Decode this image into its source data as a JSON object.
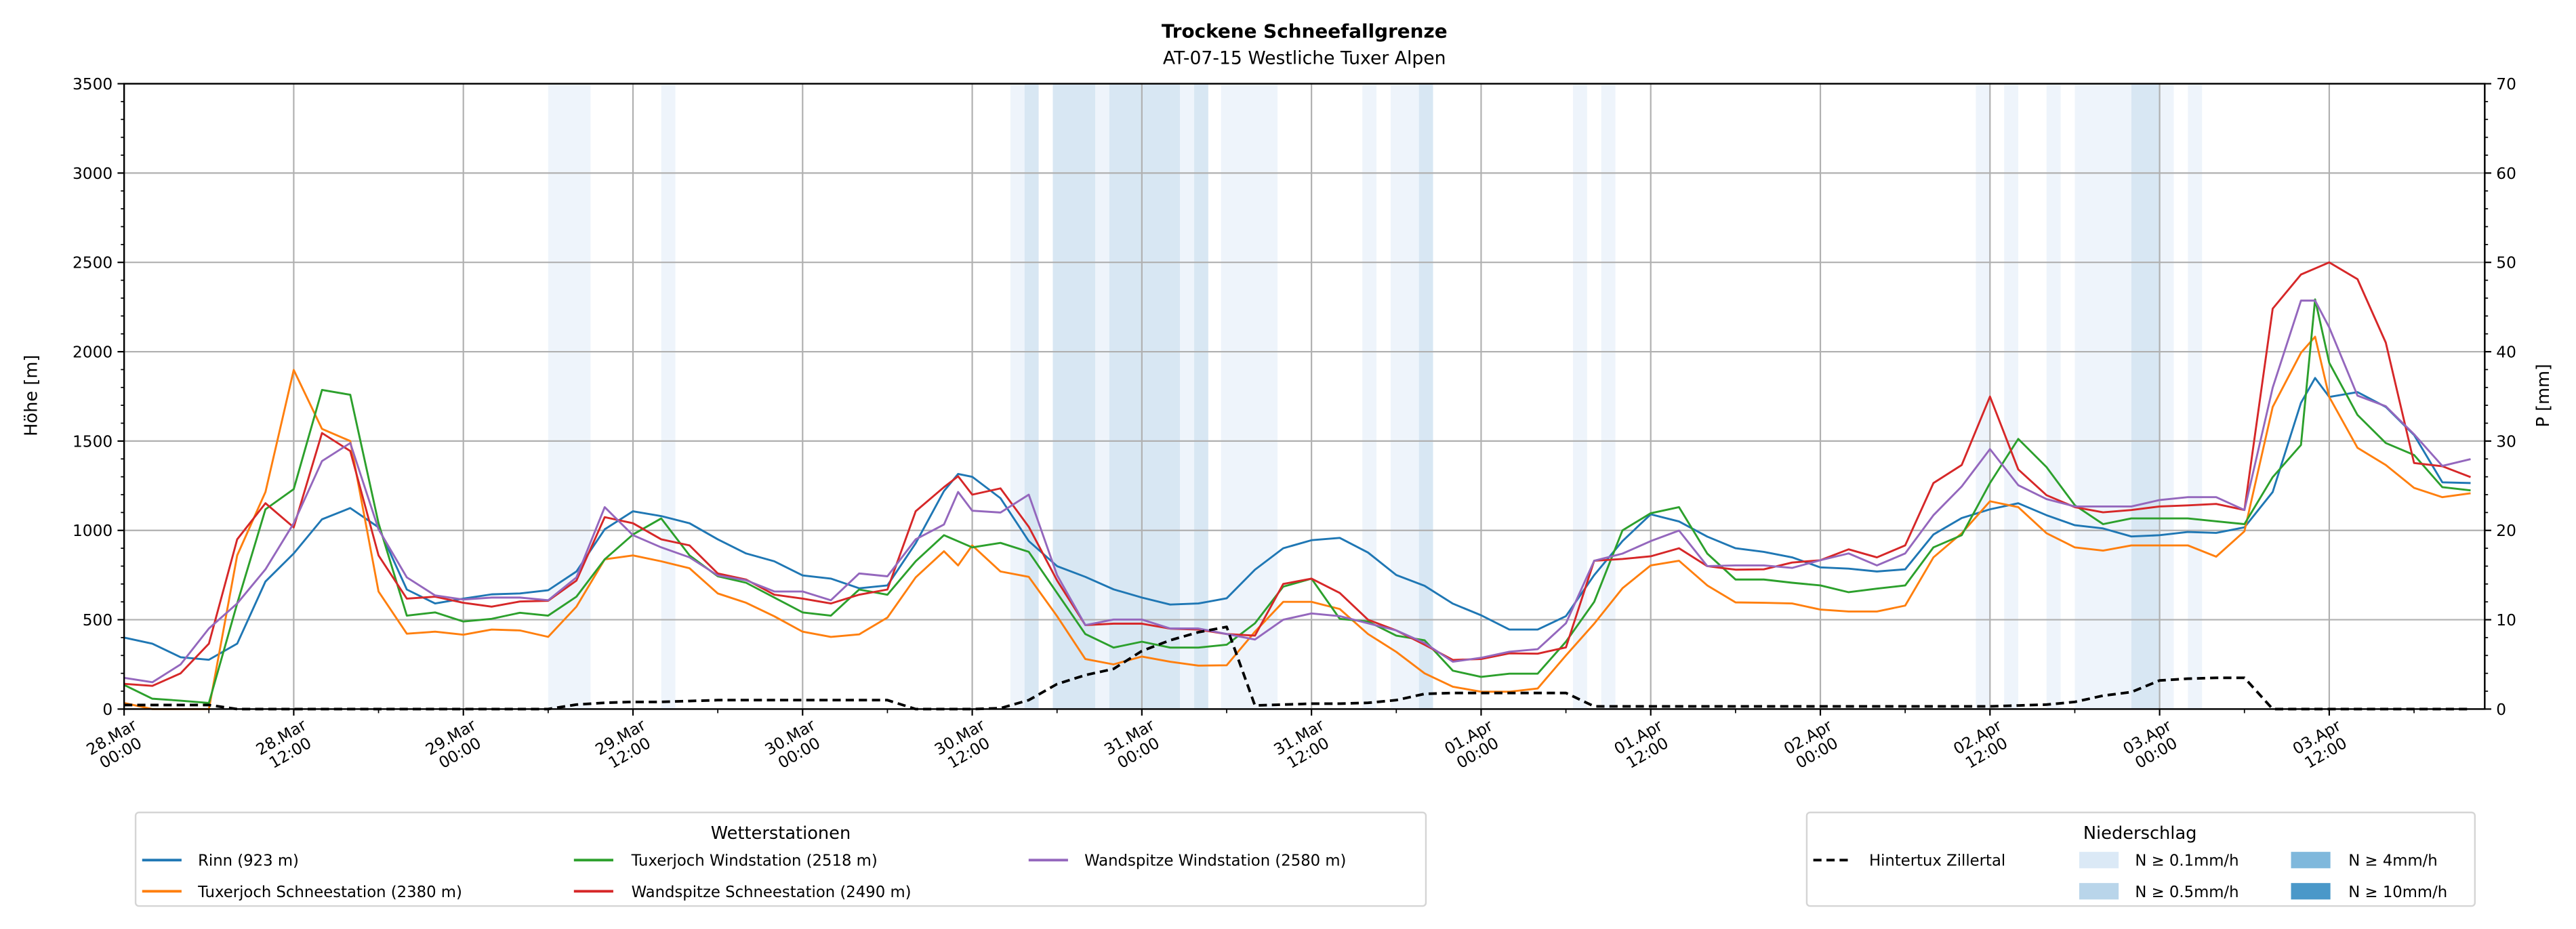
{
  "chart_data": {
    "type": "line",
    "title": "Trockene Schneefallgrenze",
    "subtitle": "AT-07-15 Westliche Tuxer Alpen",
    "ylabel": "Höhe [m]",
    "y2label": "P [mm]",
    "ylim": [
      0,
      3500
    ],
    "y2lim": [
      0,
      70
    ],
    "xlim_hours": [
      0,
      167
    ],
    "x_unit": "hours since 28.Mar 00:00",
    "grid": true,
    "yticks": [
      "0",
      "500",
      "1000",
      "1500",
      "2000",
      "2500",
      "3000",
      "3500"
    ],
    "y2ticks": [
      "0",
      "10",
      "20",
      "30",
      "40",
      "50",
      "60",
      "70"
    ],
    "xticks": [
      [
        "28.Mar",
        "00:00"
      ],
      [
        "28.Mar",
        "12:00"
      ],
      [
        "29.Mar",
        "00:00"
      ],
      [
        "29.Mar",
        "12:00"
      ],
      [
        "30.Mar",
        "00:00"
      ],
      [
        "30.Mar",
        "12:00"
      ],
      [
        "31.Mar",
        "00:00"
      ],
      [
        "31.Mar",
        "12:00"
      ],
      [
        "01.Apr",
        "00:00"
      ],
      [
        "01.Apr",
        "12:00"
      ],
      [
        "02.Apr",
        "00:00"
      ],
      [
        "02.Apr",
        "12:00"
      ],
      [
        "03.Apr",
        "00:00"
      ],
      [
        "03.Apr",
        "12:00"
      ]
    ],
    "x": [
      0,
      2,
      4,
      6,
      8,
      10,
      12,
      14,
      16,
      18,
      20,
      22,
      24,
      26,
      28,
      30,
      32,
      34,
      36,
      38,
      40,
      42,
      44,
      46,
      48,
      50,
      52,
      54,
      56,
      58,
      59,
      60,
      62,
      64,
      66,
      68,
      70,
      72,
      74,
      76,
      78,
      80,
      82,
      84,
      86,
      88,
      90,
      92,
      94,
      96,
      98,
      100,
      102,
      104,
      106,
      108,
      110,
      112,
      114,
      116,
      118,
      120,
      122,
      124,
      126,
      128,
      130,
      132,
      134,
      136,
      138,
      140,
      142,
      144,
      146,
      148,
      150,
      152,
      154,
      155,
      156,
      158,
      160,
      162,
      164,
      166
    ],
    "series": [
      {
        "name": "Rinn (923 m)",
        "color": "#1f77b4",
        "axis": "left",
        "values": [
          400,
          366,
          290,
          276,
          366,
          714,
          871,
          1062,
          1125,
          1017,
          669,
          591,
          618,
          642,
          647,
          665,
          770,
          1006,
          1107,
          1080,
          1040,
          950,
          871,
          827,
          748,
          730,
          676,
          692,
          928,
          1220,
          1316,
          1300,
          1180,
          940,
          800,
          740,
          670,
          624,
          585,
          591,
          620,
          780,
          900,
          945,
          958,
          876,
          750,
          690,
          590,
          525,
          445,
          445,
          520,
          750,
          940,
          1090,
          1050,
          965,
          900,
          880,
          849,
          793,
          786,
          770,
          782,
          977,
          1069,
          1118,
          1152,
          1085,
          1029,
          1011,
          966,
          973,
          991,
          986,
          1017,
          1215,
          1714,
          1853,
          1747,
          1774,
          1691,
          1534,
          1269,
          1265
        ]
      },
      {
        "name": "Tuxerjoch Schneestation (2380 m)",
        "color": "#ff7f0e",
        "axis": "left",
        "values": [
          34,
          0,
          0,
          0,
          860,
          1215,
          1898,
          1568,
          1500,
          658,
          422,
          433,
          416,
          445,
          440,
          404,
          573,
          838,
          860,
          827,
          788,
          647,
          595,
          519,
          433,
          404,
          418,
          512,
          737,
          883,
          804,
          916,
          770,
          740,
          520,
          280,
          250,
          294,
          265,
          243,
          245,
          433,
          600,
          600,
          560,
          420,
          320,
          200,
          125,
          97,
          97,
          115,
          300,
          478,
          676,
          804,
          830,
          692,
          597,
          595,
          591,
          557,
          546,
          546,
          579,
          849,
          984,
          1163,
          1130,
          984,
          905,
          887,
          916,
          916,
          916,
          853,
          995,
          1691,
          1994,
          2084,
          1747,
          1462,
          1366,
          1238,
          1186,
          1208
        ]
      },
      {
        "name": "Tuxerjoch Windstation (2518 m)",
        "color": "#2ca02c",
        "axis": "left",
        "values": [
          135,
          58,
          47,
          34,
          591,
          1118,
          1231,
          1786,
          1759,
          1040,
          523,
          541,
          490,
          505,
          539,
          523,
          629,
          838,
          977,
          1067,
          860,
          743,
          707,
          624,
          541,
          523,
          669,
          640,
          827,
          973,
          939,
          905,
          930,
          880,
          650,
          420,
          344,
          377,
          344,
          344,
          360,
          480,
          685,
          730,
          505,
          490,
          411,
          385,
          215,
          180,
          198,
          198,
          377,
          600,
          1000,
          1096,
          1130,
          870,
          725,
          725,
          707,
          692,
          654,
          674,
          692,
          905,
          973,
          1265,
          1512,
          1354,
          1141,
          1035,
          1067,
          1067,
          1067,
          1051,
          1035,
          1298,
          1478,
          2293,
          1938,
          1646,
          1489,
          1422,
          1242,
          1224
        ]
      },
      {
        "name": "Wandspitze Schneestation (2490 m)",
        "color": "#d62728",
        "axis": "left",
        "values": [
          141,
          130,
          200,
          366,
          950,
          1152,
          1017,
          1545,
          1444,
          860,
          618,
          629,
          595,
          573,
          602,
          606,
          719,
          1074,
          1040,
          950,
          916,
          759,
          725,
          640,
          618,
          591,
          640,
          669,
          1107,
          1242,
          1303,
          1200,
          1235,
          1020,
          720,
          470,
          478,
          478,
          450,
          445,
          420,
          411,
          700,
          730,
          650,
          500,
          440,
          360,
          275,
          280,
          312,
          310,
          345,
          830,
          840,
          855,
          900,
          800,
          780,
          782,
          820,
          833,
          894,
          849,
          916,
          1265,
          1366,
          1749,
          1341,
          1197,
          1130,
          1101,
          1114,
          1134,
          1140,
          1148,
          1114,
          2241,
          2432,
          2466,
          2500,
          2406,
          2051,
          1377,
          1359,
          1298
        ]
      },
      {
        "name": "Wandspitze Windstation (2580 m)",
        "color": "#9467bd",
        "axis": "left",
        "values": [
          175,
          150,
          250,
          451,
          591,
          782,
          1040,
          1388,
          1489,
          1006,
          737,
          636,
          613,
          624,
          624,
          609,
          737,
          1130,
          973,
          905,
          849,
          748,
          721,
          658,
          658,
          609,
          759,
          743,
          950,
          1033,
          1215,
          1110,
          1100,
          1200,
          750,
          470,
          501,
          501,
          451,
          451,
          420,
          389,
          500,
          535,
          520,
          480,
          440,
          370,
          265,
          287,
          321,
          335,
          480,
          830,
          870,
          940,
          999,
          800,
          804,
          804,
          790,
          833,
          871,
          804,
          871,
          1085,
          1246,
          1455,
          1253,
          1175,
          1134,
          1134,
          1134,
          1170,
          1186,
          1186,
          1114,
          1799,
          2286,
          2286,
          2136,
          1754,
          1695,
          1538,
          1361,
          1399
        ]
      },
      {
        "name": "Hintertux Zillertal",
        "color": "#000000",
        "axis": "right",
        "dashed": true,
        "values": [
          0.45,
          0.45,
          0.45,
          0.45,
          0,
          0,
          0,
          0,
          0,
          0,
          0,
          0,
          0,
          0,
          0,
          0,
          0.5,
          0.7,
          0.8,
          0.8,
          0.9,
          1.0,
          1.0,
          1.0,
          1.0,
          1.0,
          1.0,
          1.0,
          0,
          0,
          0,
          0,
          0.1,
          1.0,
          2.8,
          3.8,
          4.5,
          6.5,
          7.7,
          8.6,
          9.2,
          0.4,
          0.5,
          0.6,
          0.6,
          0.7,
          1.0,
          1.7,
          1.8,
          1.8,
          1.8,
          1.8,
          1.8,
          0.3,
          0.3,
          0.3,
          0.3,
          0.3,
          0.3,
          0.3,
          0.3,
          0.3,
          0.3,
          0.3,
          0.3,
          0.3,
          0.3,
          0.3,
          0.4,
          0.5,
          0.8,
          1.5,
          1.9,
          3.2,
          3.4,
          3.5,
          3.5,
          0,
          0,
          0,
          0,
          0,
          0,
          0,
          0,
          0
        ]
      }
    ],
    "precip_bands": [
      {
        "from": 30,
        "to": 33,
        "level": "N ≥ 0.1mm/h"
      },
      {
        "from": 38,
        "to": 39,
        "level": "N ≥ 0.1mm/h"
      },
      {
        "from": 62.7,
        "to": 63.7,
        "level": "N ≥ 0.1mm/h"
      },
      {
        "from": 63.7,
        "to": 64.7,
        "level": "N ≥ 0.5mm/h"
      },
      {
        "from": 65.7,
        "to": 68.7,
        "level": "N ≥ 0.5mm/h"
      },
      {
        "from": 68.7,
        "to": 69.7,
        "level": "N ≥ 0.1mm/h"
      },
      {
        "from": 69.7,
        "to": 74.7,
        "level": "N ≥ 0.5mm/h"
      },
      {
        "from": 74.7,
        "to": 75.7,
        "level": "N ≥ 0.1mm/h"
      },
      {
        "from": 75.7,
        "to": 76.7,
        "level": "N ≥ 0.5mm/h"
      },
      {
        "from": 77.6,
        "to": 81.6,
        "level": "N ≥ 0.1mm/h"
      },
      {
        "from": 87.6,
        "to": 88.6,
        "level": "N ≥ 0.1mm/h"
      },
      {
        "from": 89.6,
        "to": 91.6,
        "level": "N ≥ 0.1mm/h"
      },
      {
        "from": 91.6,
        "to": 92.6,
        "level": "N ≥ 0.5mm/h"
      },
      {
        "from": 102.5,
        "to": 103.5,
        "level": "N ≥ 0.1mm/h"
      },
      {
        "from": 104.5,
        "to": 105.5,
        "level": "N ≥ 0.1mm/h"
      },
      {
        "from": 131,
        "to": 132,
        "level": "N ≥ 0.1mm/h"
      },
      {
        "from": 133,
        "to": 134,
        "level": "N ≥ 0.1mm/h"
      },
      {
        "from": 136,
        "to": 137,
        "level": "N ≥ 0.1mm/h"
      },
      {
        "from": 138,
        "to": 142,
        "level": "N ≥ 0.1mm/h"
      },
      {
        "from": 142,
        "to": 144,
        "level": "N ≥ 0.5mm/h"
      },
      {
        "from": 144,
        "to": 145,
        "level": "N ≥ 0.1mm/h"
      },
      {
        "from": 146,
        "to": 147,
        "level": "N ≥ 0.1mm/h"
      }
    ],
    "band_colors": {
      "N ≥ 0.1mm/h": "#eef4fb",
      "N ≥ 0.5mm/h": "#d8e7f3"
    },
    "legend_stations": {
      "title": "Wetterstationen",
      "placement": "bottom-left",
      "entries": [
        "Rinn (923 m)",
        "Tuxerjoch Schneestation (2380 m)",
        "Tuxerjoch Windstation (2518 m)",
        "Wandspitze Schneestation (2490 m)",
        "Wandspitze Windstation (2580 m)"
      ]
    },
    "legend_precip": {
      "title": "Niederschlag",
      "placement": "bottom-right",
      "line_label": "Hintertux Zillertal",
      "patches": [
        {
          "label": "N ≥ 0.1mm/h",
          "color": "#dbe9f6"
        },
        {
          "label": "N ≥ 0.5mm/h",
          "color": "#b9d5ea"
        },
        {
          "label": "N ≥ 4mm/h",
          "color": "#7fb8dc"
        },
        {
          "label": "N ≥ 10mm/h",
          "color": "#4a98c9"
        }
      ]
    }
  }
}
